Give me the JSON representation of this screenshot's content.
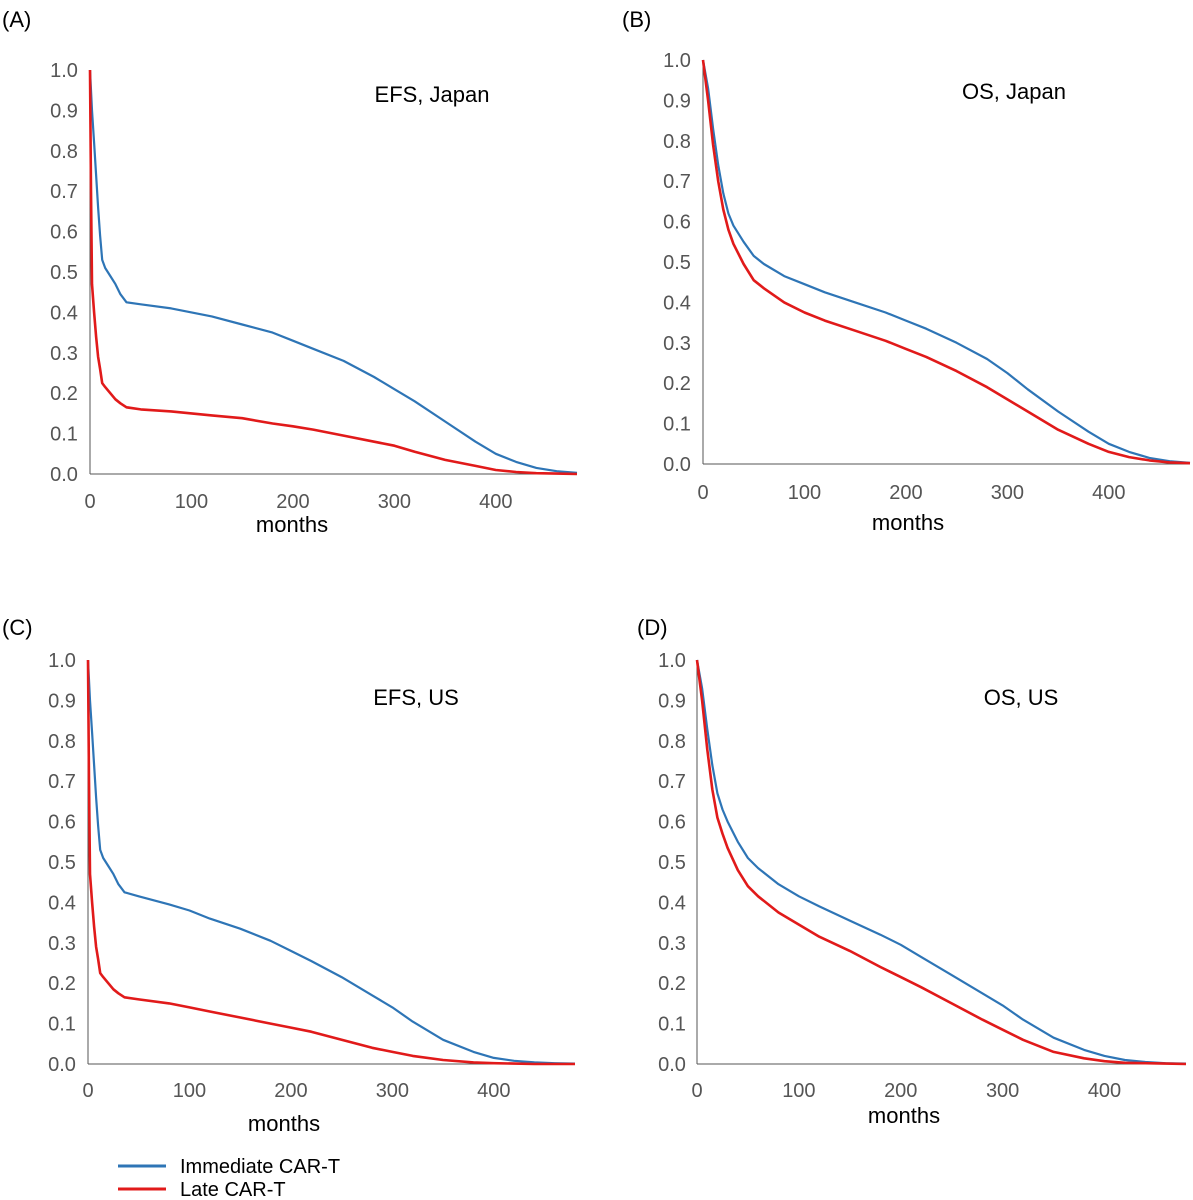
{
  "colors": {
    "immediate": "#2E75B6",
    "late": "#E11A1A",
    "axis": "#555555"
  },
  "legend": {
    "items": [
      "Immediate CAR-T",
      "Late CAR-T"
    ]
  },
  "chart_data": [
    {
      "panel": "(A)",
      "type": "line",
      "title": "EFS, Japan",
      "xlabel": "months",
      "ylabel": "",
      "xlim": [
        0,
        480
      ],
      "ylim": [
        0,
        1
      ],
      "xticks": [
        "0",
        "100",
        "200",
        "300",
        "400"
      ],
      "yticks": [
        "0.0",
        "0.1",
        "0.2",
        "0.3",
        "0.4",
        "0.5",
        "0.6",
        "0.7",
        "0.8",
        "0.9",
        "1.0"
      ],
      "series": [
        {
          "name": "Immediate CAR-T",
          "x": [
            0,
            2,
            4,
            6,
            8,
            10,
            12,
            15,
            20,
            25,
            30,
            36,
            50,
            80,
            100,
            120,
            150,
            180,
            200,
            220,
            250,
            280,
            300,
            320,
            350,
            380,
            400,
            420,
            440,
            460,
            480
          ],
          "y": [
            1.0,
            0.9,
            0.82,
            0.74,
            0.66,
            0.59,
            0.53,
            0.51,
            0.49,
            0.47,
            0.445,
            0.425,
            0.42,
            0.41,
            0.4,
            0.39,
            0.37,
            0.35,
            0.33,
            0.31,
            0.28,
            0.24,
            0.21,
            0.18,
            0.13,
            0.08,
            0.05,
            0.03,
            0.015,
            0.007,
            0.003
          ]
        },
        {
          "name": "Late CAR-T",
          "x": [
            0,
            1,
            2,
            4,
            6,
            8,
            10,
            12,
            15,
            20,
            25,
            30,
            36,
            50,
            80,
            100,
            120,
            150,
            180,
            200,
            220,
            250,
            280,
            300,
            320,
            350,
            380,
            400,
            420,
            440,
            460,
            480
          ],
          "y": [
            1.0,
            0.7,
            0.47,
            0.4,
            0.34,
            0.29,
            0.26,
            0.225,
            0.215,
            0.2,
            0.185,
            0.175,
            0.165,
            0.16,
            0.155,
            0.15,
            0.145,
            0.138,
            0.125,
            0.118,
            0.11,
            0.095,
            0.08,
            0.07,
            0.055,
            0.035,
            0.02,
            0.01,
            0.005,
            0.002,
            0.001,
            0.0
          ]
        }
      ]
    },
    {
      "panel": "(B)",
      "type": "line",
      "title": "OS, Japan",
      "xlabel": "months",
      "ylabel": "",
      "xlim": [
        0,
        480
      ],
      "ylim": [
        0,
        1
      ],
      "xticks": [
        "0",
        "100",
        "200",
        "300",
        "400"
      ],
      "yticks": [
        "0.0",
        "0.1",
        "0.2",
        "0.3",
        "0.4",
        "0.5",
        "0.6",
        "0.7",
        "0.8",
        "0.9",
        "1.0"
      ],
      "series": [
        {
          "name": "Immediate CAR-T",
          "x": [
            0,
            5,
            10,
            15,
            20,
            25,
            30,
            40,
            50,
            60,
            80,
            100,
            120,
            150,
            180,
            200,
            220,
            250,
            280,
            300,
            320,
            350,
            380,
            400,
            420,
            440,
            460,
            480
          ],
          "y": [
            1.0,
            0.93,
            0.83,
            0.74,
            0.67,
            0.62,
            0.59,
            0.55,
            0.515,
            0.495,
            0.465,
            0.445,
            0.425,
            0.4,
            0.375,
            0.355,
            0.335,
            0.3,
            0.26,
            0.225,
            0.185,
            0.13,
            0.08,
            0.05,
            0.03,
            0.015,
            0.007,
            0.003
          ]
        },
        {
          "name": "Late CAR-T",
          "x": [
            0,
            5,
            10,
            15,
            20,
            25,
            30,
            40,
            50,
            60,
            80,
            100,
            120,
            150,
            180,
            200,
            220,
            250,
            280,
            300,
            320,
            350,
            380,
            400,
            420,
            440,
            460,
            480
          ],
          "y": [
            1.0,
            0.9,
            0.79,
            0.7,
            0.63,
            0.58,
            0.545,
            0.495,
            0.455,
            0.435,
            0.4,
            0.375,
            0.355,
            0.33,
            0.305,
            0.285,
            0.265,
            0.23,
            0.19,
            0.16,
            0.13,
            0.085,
            0.05,
            0.03,
            0.017,
            0.009,
            0.004,
            0.002
          ]
        }
      ]
    },
    {
      "panel": "(C)",
      "type": "line",
      "title": "EFS, US",
      "xlabel": "months",
      "ylabel": "",
      "xlim": [
        0,
        480
      ],
      "ylim": [
        0,
        1
      ],
      "xticks": [
        "0",
        "100",
        "200",
        "300",
        "400"
      ],
      "yticks": [
        "0.0",
        "0.1",
        "0.2",
        "0.3",
        "0.4",
        "0.5",
        "0.6",
        "0.7",
        "0.8",
        "0.9",
        "1.0"
      ],
      "series": [
        {
          "name": "Immediate CAR-T",
          "x": [
            0,
            2,
            4,
            6,
            8,
            10,
            12,
            15,
            20,
            25,
            30,
            36,
            50,
            80,
            100,
            120,
            150,
            180,
            200,
            220,
            250,
            280,
            300,
            320,
            350,
            380,
            400,
            420,
            440,
            460,
            480
          ],
          "y": [
            1.0,
            0.9,
            0.82,
            0.74,
            0.66,
            0.59,
            0.53,
            0.51,
            0.49,
            0.47,
            0.445,
            0.425,
            0.415,
            0.395,
            0.38,
            0.36,
            0.335,
            0.305,
            0.28,
            0.255,
            0.215,
            0.17,
            0.14,
            0.105,
            0.06,
            0.03,
            0.015,
            0.008,
            0.004,
            0.002,
            0.001
          ]
        },
        {
          "name": "Late CAR-T",
          "x": [
            0,
            1,
            2,
            4,
            6,
            8,
            10,
            12,
            15,
            20,
            25,
            30,
            36,
            50,
            80,
            100,
            120,
            150,
            180,
            200,
            220,
            250,
            280,
            300,
            320,
            350,
            380,
            400,
            420,
            440,
            460,
            480
          ],
          "y": [
            1.0,
            0.7,
            0.47,
            0.4,
            0.34,
            0.29,
            0.26,
            0.225,
            0.215,
            0.2,
            0.185,
            0.175,
            0.165,
            0.16,
            0.15,
            0.14,
            0.13,
            0.115,
            0.1,
            0.09,
            0.08,
            0.06,
            0.04,
            0.03,
            0.02,
            0.01,
            0.004,
            0.002,
            0.001,
            0.0,
            0.0,
            0.0
          ]
        }
      ]
    },
    {
      "panel": "(D)",
      "type": "line",
      "title": "OS, US",
      "xlabel": "months",
      "ylabel": "",
      "xlim": [
        0,
        480
      ],
      "ylim": [
        0,
        1
      ],
      "xticks": [
        "0",
        "100",
        "200",
        "300",
        "400"
      ],
      "yticks": [
        "0.0",
        "0.1",
        "0.2",
        "0.3",
        "0.4",
        "0.5",
        "0.6",
        "0.7",
        "0.8",
        "0.9",
        "1.0"
      ],
      "series": [
        {
          "name": "Immediate CAR-T",
          "x": [
            0,
            5,
            10,
            15,
            20,
            25,
            30,
            40,
            50,
            60,
            80,
            100,
            120,
            150,
            180,
            200,
            220,
            250,
            280,
            300,
            320,
            350,
            380,
            400,
            420,
            440,
            460,
            480
          ],
          "y": [
            1.0,
            0.93,
            0.83,
            0.74,
            0.67,
            0.63,
            0.6,
            0.55,
            0.51,
            0.485,
            0.445,
            0.415,
            0.39,
            0.355,
            0.32,
            0.295,
            0.265,
            0.22,
            0.175,
            0.145,
            0.11,
            0.065,
            0.035,
            0.02,
            0.01,
            0.005,
            0.002,
            0.001
          ]
        },
        {
          "name": "Late CAR-T",
          "x": [
            0,
            5,
            10,
            15,
            20,
            25,
            30,
            40,
            50,
            60,
            80,
            100,
            120,
            150,
            180,
            200,
            220,
            250,
            280,
            300,
            320,
            350,
            380,
            400,
            420,
            440,
            460,
            480
          ],
          "y": [
            1.0,
            0.9,
            0.78,
            0.68,
            0.61,
            0.57,
            0.535,
            0.48,
            0.44,
            0.415,
            0.375,
            0.345,
            0.315,
            0.28,
            0.24,
            0.215,
            0.19,
            0.15,
            0.11,
            0.085,
            0.06,
            0.03,
            0.014,
            0.007,
            0.003,
            0.002,
            0.001,
            0.0
          ]
        }
      ]
    }
  ]
}
